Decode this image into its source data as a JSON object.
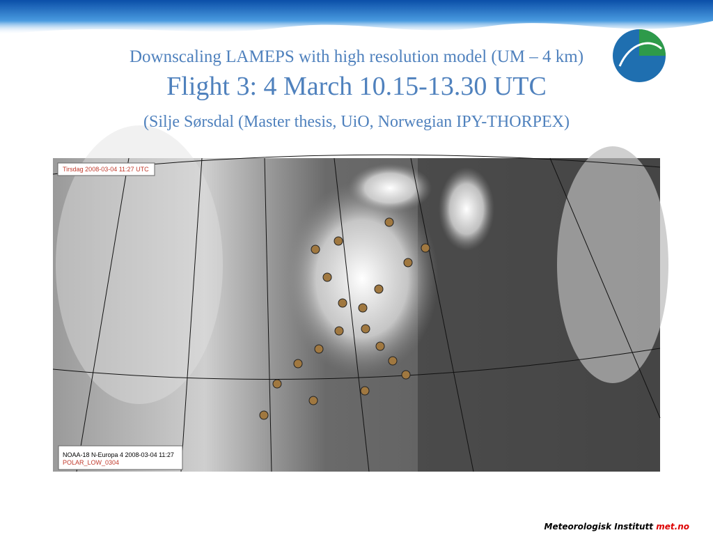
{
  "header": {
    "title": "Downscaling LAMEPS with high resolution model (UM – 4 km)",
    "subtitle": "Flight 3: 4 March 10.15-13.30 UTC",
    "credit": "(Silje Sørsdal (Master thesis, UiO, Norwegian IPY-THORPEX)"
  },
  "image": {
    "timestamp": "Tirsdag 2008-03-04 11:27 UTC",
    "source": "NOAA-18 N-Europa 4 2008-03-04 11:27",
    "case": "POLAR_LOW_0304"
  },
  "footer": {
    "institute": "Meteorologisk Institutt",
    "site": "met.no"
  }
}
